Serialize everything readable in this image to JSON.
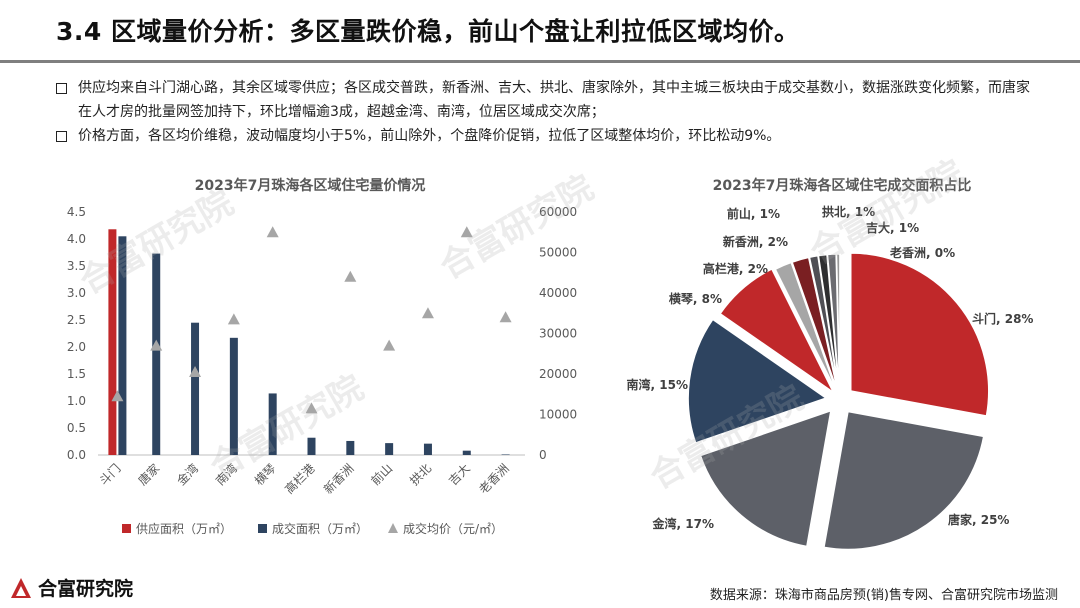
{
  "header": {
    "title": "3.4 区域量价分析：多区量跌价稳，前山个盘让利拉低区域均价。"
  },
  "bullets": [
    "供应均来自斗门湖心路，其余区域零供应；各区成交普跌，新香洲、吉大、拱北、唐家除外，其中主城三板块由于成交基数小，数据涨跌变化频繁，而唐家在人才房的批量网签加持下，环比增幅逾3成，超越金湾、南湾，位居区域成交次席；",
    "价格方面，各区均价维稳，波动幅度均小于5%，前山除外，个盘降价促销，拉低了区域整体均价，环比松动9%。"
  ],
  "watermark": "合富研究院",
  "footer": {
    "brand": "合富研究院",
    "source": "数据来源：珠海市商品房预(销)售专网、合富研究院市场监测"
  },
  "colors": {
    "supply": "#c0282a",
    "deal": "#2e4460",
    "price": "#a6a6a6",
    "pie": [
      "#c0282a",
      "#5d6068",
      "#5d6068",
      "#2e4460",
      "#c0282a",
      "#a6a6a6",
      "#7a1f22",
      "#4f4f55",
      "#2e2e30",
      "#6b6b70",
      "#999999"
    ]
  },
  "chart_data": [
    {
      "type": "bar",
      "title": "2023年7月珠海各区域住宅量价情况",
      "categories": [
        "斗门",
        "唐家",
        "金湾",
        "南湾",
        "横琴",
        "高栏港",
        "新香洲",
        "前山",
        "拱北",
        "吉大",
        "老香洲"
      ],
      "series": [
        {
          "name": "供应面积（万㎡）",
          "kind": "bar",
          "axis": "left",
          "values": [
            4.18,
            0,
            0,
            0,
            0,
            0,
            0,
            0,
            0,
            0,
            0
          ]
        },
        {
          "name": "成交面积（万㎡）",
          "kind": "bar",
          "axis": "left",
          "values": [
            4.05,
            3.73,
            2.45,
            2.17,
            1.14,
            0.32,
            0.26,
            0.22,
            0.21,
            0.08,
            0.01
          ]
        },
        {
          "name": "成交均价（元/㎡）",
          "kind": "marker",
          "axis": "right",
          "values": [
            14500,
            27000,
            20500,
            33500,
            55000,
            11500,
            44000,
            27000,
            35000,
            55000,
            34000
          ]
        }
      ],
      "ylim_left": [
        0,
        4.5
      ],
      "yticks_left": [
        "0.0",
        "0.5",
        "1.0",
        "1.5",
        "2.0",
        "2.5",
        "3.0",
        "3.5",
        "4.0",
        "4.5"
      ],
      "ylim_right": [
        0,
        60000
      ],
      "yticks_right": [
        "0",
        "10000",
        "20000",
        "30000",
        "40000",
        "50000",
        "60000"
      ],
      "legend": "bottom"
    },
    {
      "type": "pie",
      "title": "2023年7月珠海各区域住宅成交面积占比",
      "labels": [
        "斗门",
        "唐家",
        "金湾",
        "南湾",
        "横琴",
        "高栏港",
        "新香洲",
        "前山",
        "拱北",
        "吉大",
        "老香洲"
      ],
      "values": [
        28,
        25,
        17,
        15,
        8,
        2,
        2,
        1,
        1,
        1,
        0
      ],
      "value_labels": [
        "斗门, 28%",
        "唐家, 25%",
        "金湾, 17%",
        "南湾, 15%",
        "横琴, 8%",
        "高栏港, 2%",
        "新香洲, 2%",
        "前山, 1%",
        "拱北, 1%",
        "吉大, 1%",
        "老香洲, 0%"
      ]
    }
  ]
}
